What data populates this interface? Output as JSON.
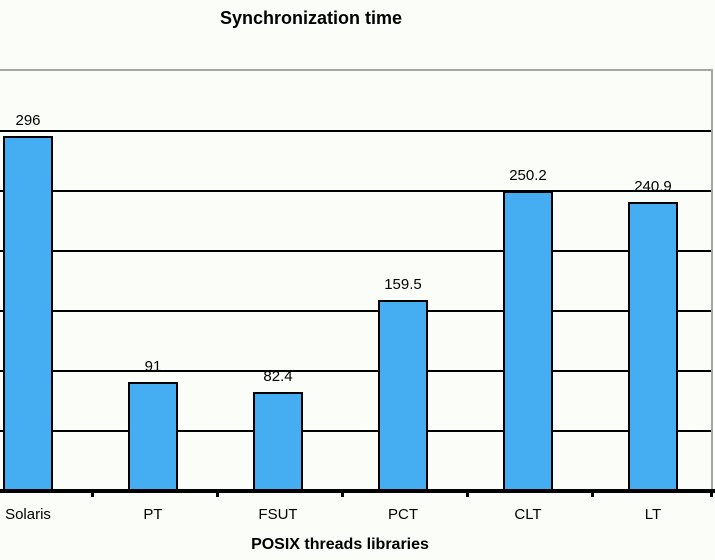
{
  "chart_data": {
    "type": "bar",
    "title": "Synchronization time",
    "xlabel": "POSIX threads libraries",
    "ylabel": "",
    "categories": [
      "Solaris",
      "PT",
      "FSUT",
      "PCT",
      "CLT",
      "LT"
    ],
    "values": [
      296,
      91,
      82.4,
      159.5,
      250.2,
      240.9
    ],
    "value_labels": [
      "296",
      "91",
      "82.4",
      "159.5",
      "250.2",
      "240.9"
    ],
    "ylim": [
      0,
      350
    ],
    "gridline_step": 50,
    "grid": "horizontal-only",
    "legend": "none",
    "colors": {
      "bar_fill": "#45aef2",
      "bar_border": "#000000",
      "gridline": "#000000",
      "plot_border": "#a3a8a3",
      "axis": "#000000",
      "background": "#fafdf8",
      "text": "#000000"
    }
  }
}
